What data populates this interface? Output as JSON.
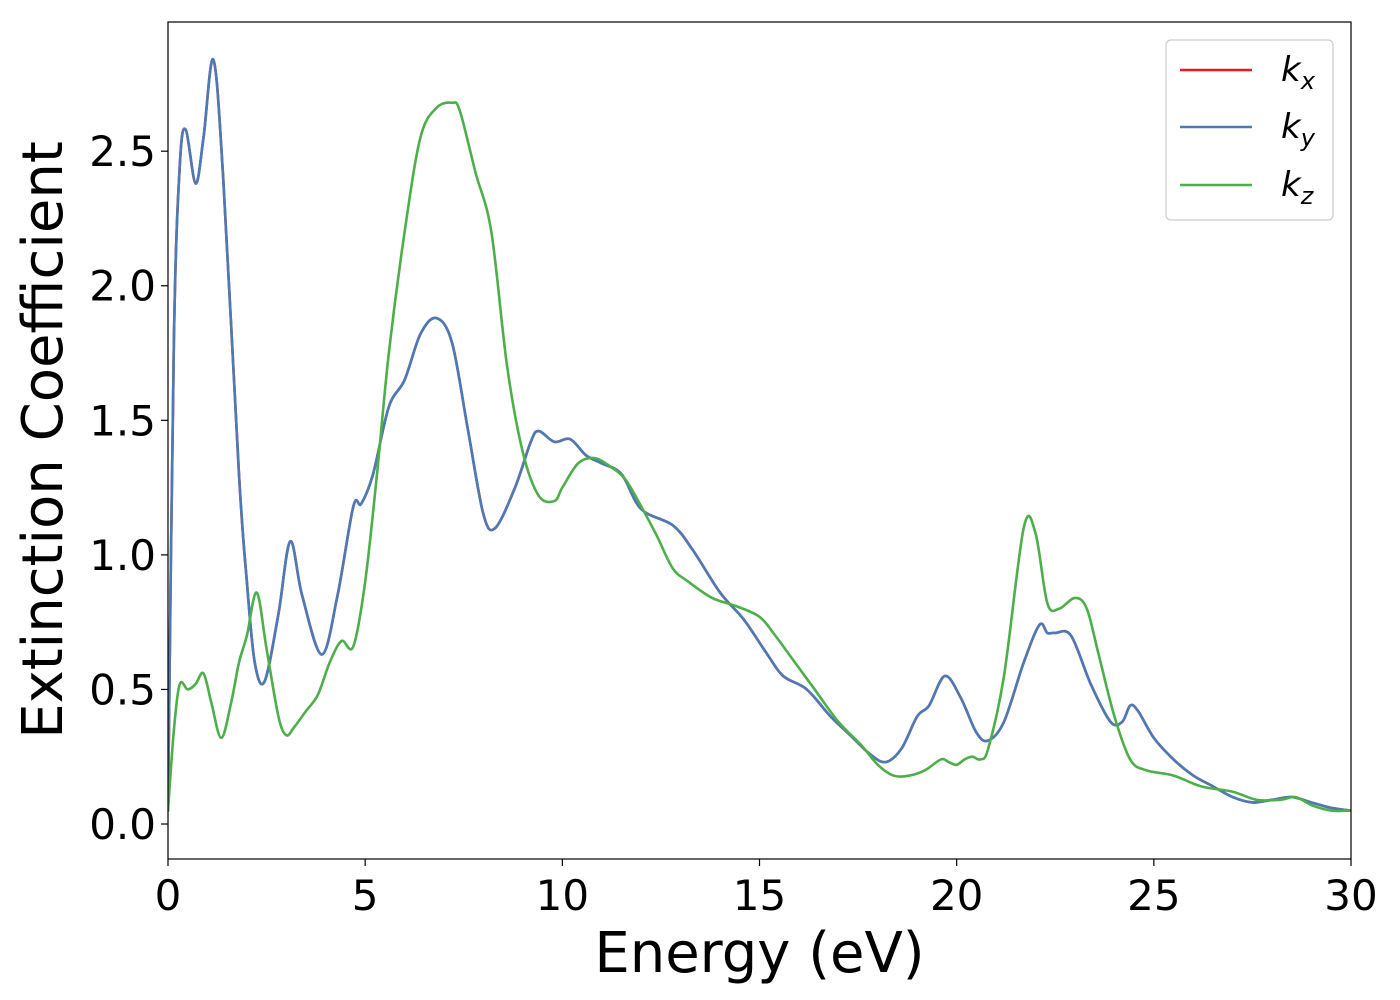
{
  "chart_data": {
    "type": "line",
    "title": "",
    "xlabel": "Energy (eV)",
    "ylabel": "Extinction Coefficient",
    "xlim": [
      0,
      30
    ],
    "ylim": [
      -0.13,
      2.98
    ],
    "xticks": [
      0,
      5,
      10,
      15,
      20,
      25,
      30
    ],
    "xtick_labels": [
      "0",
      "5",
      "10",
      "15",
      "20",
      "25",
      "30"
    ],
    "yticks": [
      0.0,
      0.5,
      1.0,
      1.5,
      2.0,
      2.5
    ],
    "ytick_labels": [
      "0.0",
      "0.5",
      "1.0",
      "1.5",
      "2.0",
      "2.5"
    ],
    "grid": false,
    "legend_position": "top-right",
    "series": [
      {
        "name": "kx",
        "symbol": "k",
        "subscript": "x",
        "color": "#e41a1c",
        "x": [
          0,
          0.15,
          0.3,
          0.45,
          0.7,
          0.9,
          1.15,
          1.4,
          1.8,
          2.0,
          2.2,
          2.45,
          2.8,
          3.1,
          3.4,
          3.9,
          4.3,
          4.7,
          4.9,
          5.2,
          5.6,
          6.0,
          6.4,
          6.8,
          7.2,
          7.6,
          8.0,
          8.3,
          8.8,
          9.2,
          9.4,
          9.8,
          10.2,
          10.6,
          11.0,
          11.5,
          12.0,
          12.8,
          13.3,
          14.0,
          14.6,
          15.2,
          15.6,
          16.2,
          16.8,
          17.3,
          17.8,
          18.2,
          18.6,
          19.0,
          19.3,
          19.7,
          20.1,
          20.5,
          20.8,
          21.2,
          21.7,
          22.1,
          22.3,
          22.5,
          22.9,
          23.4,
          23.9,
          24.2,
          24.4,
          24.6,
          25.0,
          25.5,
          26.0,
          26.5,
          27.0,
          27.5,
          28.0,
          28.5,
          29.0,
          29.5,
          30.0
        ],
        "y": [
          0.05,
          1.8,
          2.45,
          2.58,
          2.38,
          2.55,
          2.84,
          2.4,
          1.3,
          0.9,
          0.6,
          0.53,
          0.78,
          1.05,
          0.85,
          0.63,
          0.85,
          1.18,
          1.19,
          1.3,
          1.55,
          1.65,
          1.82,
          1.88,
          1.79,
          1.47,
          1.15,
          1.1,
          1.25,
          1.42,
          1.46,
          1.42,
          1.43,
          1.37,
          1.34,
          1.3,
          1.17,
          1.11,
          1.02,
          0.86,
          0.76,
          0.63,
          0.55,
          0.5,
          0.4,
          0.33,
          0.26,
          0.23,
          0.28,
          0.4,
          0.44,
          0.55,
          0.47,
          0.34,
          0.31,
          0.38,
          0.6,
          0.74,
          0.71,
          0.71,
          0.7,
          0.52,
          0.38,
          0.38,
          0.44,
          0.42,
          0.32,
          0.24,
          0.18,
          0.14,
          0.1,
          0.08,
          0.09,
          0.1,
          0.08,
          0.06,
          0.05
        ]
      },
      {
        "name": "ky",
        "symbol": "k",
        "subscript": "y",
        "color": "#4a7bb7",
        "x": [
          0,
          0.15,
          0.3,
          0.45,
          0.7,
          0.9,
          1.15,
          1.4,
          1.8,
          2.0,
          2.2,
          2.45,
          2.8,
          3.1,
          3.4,
          3.9,
          4.3,
          4.7,
          4.9,
          5.2,
          5.6,
          6.0,
          6.4,
          6.8,
          7.2,
          7.6,
          8.0,
          8.3,
          8.8,
          9.2,
          9.4,
          9.8,
          10.2,
          10.6,
          11.0,
          11.5,
          12.0,
          12.8,
          13.3,
          14.0,
          14.6,
          15.2,
          15.6,
          16.2,
          16.8,
          17.3,
          17.8,
          18.2,
          18.6,
          19.0,
          19.3,
          19.7,
          20.1,
          20.5,
          20.8,
          21.2,
          21.7,
          22.1,
          22.3,
          22.5,
          22.9,
          23.4,
          23.9,
          24.2,
          24.4,
          24.6,
          25.0,
          25.5,
          26.0,
          26.5,
          27.0,
          27.5,
          28.0,
          28.5,
          29.0,
          29.5,
          30.0
        ],
        "y": [
          0.05,
          1.8,
          2.45,
          2.58,
          2.38,
          2.55,
          2.84,
          2.4,
          1.3,
          0.9,
          0.6,
          0.53,
          0.78,
          1.05,
          0.85,
          0.63,
          0.85,
          1.18,
          1.19,
          1.3,
          1.55,
          1.65,
          1.82,
          1.88,
          1.79,
          1.47,
          1.15,
          1.1,
          1.25,
          1.42,
          1.46,
          1.42,
          1.43,
          1.37,
          1.34,
          1.3,
          1.17,
          1.11,
          1.02,
          0.86,
          0.76,
          0.63,
          0.55,
          0.5,
          0.4,
          0.33,
          0.26,
          0.23,
          0.28,
          0.4,
          0.44,
          0.55,
          0.47,
          0.34,
          0.31,
          0.38,
          0.6,
          0.74,
          0.71,
          0.71,
          0.7,
          0.52,
          0.38,
          0.38,
          0.44,
          0.42,
          0.32,
          0.24,
          0.18,
          0.14,
          0.1,
          0.08,
          0.09,
          0.1,
          0.08,
          0.06,
          0.05
        ]
      },
      {
        "name": "kz",
        "symbol": "k",
        "subscript": "z",
        "color": "#4daf4a",
        "x": [
          0,
          0.15,
          0.3,
          0.5,
          0.7,
          0.9,
          1.1,
          1.35,
          1.6,
          1.8,
          2.0,
          2.25,
          2.5,
          2.8,
          3.0,
          3.2,
          3.5,
          3.8,
          4.1,
          4.4,
          4.7,
          5.0,
          5.3,
          5.6,
          6.0,
          6.4,
          6.8,
          7.2,
          7.4,
          7.8,
          8.2,
          8.6,
          9.0,
          9.4,
          9.8,
          10.0,
          10.4,
          10.8,
          11.2,
          11.6,
          12.0,
          12.4,
          12.8,
          13.2,
          13.8,
          14.4,
          15.0,
          15.4,
          15.8,
          16.4,
          17.0,
          17.6,
          18.0,
          18.4,
          18.8,
          19.2,
          19.6,
          19.8,
          20.0,
          20.2,
          20.4,
          20.6,
          20.8,
          21.2,
          21.7,
          22.0,
          22.3,
          22.6,
          23.0,
          23.3,
          23.6,
          24.0,
          24.4,
          24.8,
          25.5,
          26.2,
          27.0,
          27.6,
          28.2,
          28.6,
          29.0,
          29.5,
          30.0
        ],
        "y": [
          0.05,
          0.35,
          0.52,
          0.5,
          0.52,
          0.56,
          0.45,
          0.32,
          0.45,
          0.6,
          0.7,
          0.86,
          0.65,
          0.4,
          0.33,
          0.36,
          0.42,
          0.48,
          0.6,
          0.68,
          0.66,
          0.9,
          1.3,
          1.75,
          2.2,
          2.55,
          2.66,
          2.68,
          2.65,
          2.42,
          2.2,
          1.7,
          1.38,
          1.22,
          1.2,
          1.25,
          1.34,
          1.36,
          1.33,
          1.28,
          1.18,
          1.07,
          0.95,
          0.9,
          0.84,
          0.81,
          0.77,
          0.7,
          0.62,
          0.5,
          0.38,
          0.29,
          0.22,
          0.18,
          0.18,
          0.2,
          0.24,
          0.23,
          0.22,
          0.24,
          0.25,
          0.24,
          0.28,
          0.55,
          1.1,
          1.08,
          0.82,
          0.8,
          0.84,
          0.8,
          0.63,
          0.4,
          0.24,
          0.2,
          0.18,
          0.14,
          0.12,
          0.09,
          0.09,
          0.1,
          0.07,
          0.05,
          0.05
        ]
      }
    ]
  }
}
